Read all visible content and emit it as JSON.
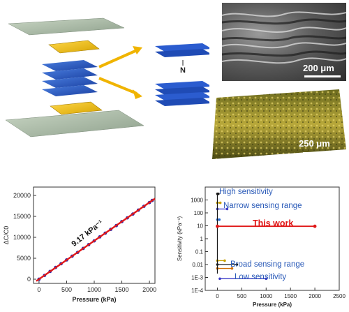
{
  "illustration": {
    "center_label": "N"
  },
  "sem": {
    "scale": "200 μm"
  },
  "micrograph": {
    "scale": "250 μm"
  },
  "chart_data": [
    {
      "type": "scatter",
      "xlabel": "Pressure (kPa)",
      "ylabel": "ΔC/C0",
      "xlim": [
        -100,
        2100
      ],
      "ylim": [
        -1000,
        22000
      ],
      "xticks": [
        0,
        500,
        1000,
        1500,
        2000
      ],
      "yticks": [
        0,
        5000,
        10000,
        15000,
        20000
      ],
      "annotation": "9.17 kPa⁻¹",
      "series": [
        {
          "color": "#2a2ab0",
          "x": [
            0,
            100,
            200,
            300,
            400,
            500,
            600,
            700,
            800,
            900,
            1000,
            1100,
            1200,
            1300,
            1400,
            1500,
            1600,
            1700,
            1800,
            1900,
            2000,
            2050
          ],
          "y": [
            0,
            900,
            1850,
            2800,
            3700,
            4600,
            5500,
            6400,
            7350,
            8250,
            9150,
            10100,
            11000,
            11900,
            12800,
            13750,
            14650,
            15550,
            16500,
            17400,
            18300,
            18800
          ]
        },
        {
          "color": "#e01818",
          "x": [
            -50,
            2100
          ],
          "y": [
            -450,
            19250
          ]
        }
      ]
    },
    {
      "type": "scatter",
      "xlabel": "Pressure (kPa)",
      "ylabel": "Sensitivity (kPa⁻¹)",
      "xlim": [
        -250,
        2500
      ],
      "ylim": [
        0.0001,
        10000
      ],
      "yscale": "log",
      "xticks": [
        0,
        500,
        1000,
        1500,
        2000,
        2500
      ],
      "ytick_labels": [
        "1E-4",
        "1E-3",
        "0.01",
        "0.1",
        "1",
        "10",
        "100",
        "1000"
      ],
      "annotations": [
        "High sensitivity",
        "Narrow sensing range",
        "This work",
        "Broad sensing range",
        "Low sensitivity"
      ],
      "this_work": {
        "color": "#e01818",
        "x": [
          0,
          2000
        ],
        "y": [
          9.17,
          9.17
        ]
      },
      "reference_ranges": [
        {
          "color": "#1a1a1a",
          "x": [
            0,
            20
          ],
          "y": [
            3000,
            3000
          ]
        },
        {
          "color": "#3a3ac8",
          "x": [
            0,
            200
          ],
          "y": [
            200,
            200
          ]
        },
        {
          "color": "#c8a000",
          "x": [
            0,
            60
          ],
          "y": [
            600,
            600
          ]
        },
        {
          "color": "#2a6ad0",
          "x": [
            0,
            40
          ],
          "y": [
            30,
            30
          ]
        },
        {
          "color": "#d06a00",
          "x": [
            0,
            300
          ],
          "y": [
            0.005,
            0.005
          ]
        },
        {
          "color": "#1a1a1a",
          "x": [
            0,
            400
          ],
          "y": [
            0.01,
            0.01
          ]
        },
        {
          "color": "#3a3ac8",
          "x": [
            50,
            1000
          ],
          "y": [
            0.0008,
            0.0008
          ]
        },
        {
          "color": "#c8a000",
          "x": [
            0,
            150
          ],
          "y": [
            0.02,
            0.02
          ]
        }
      ]
    }
  ]
}
